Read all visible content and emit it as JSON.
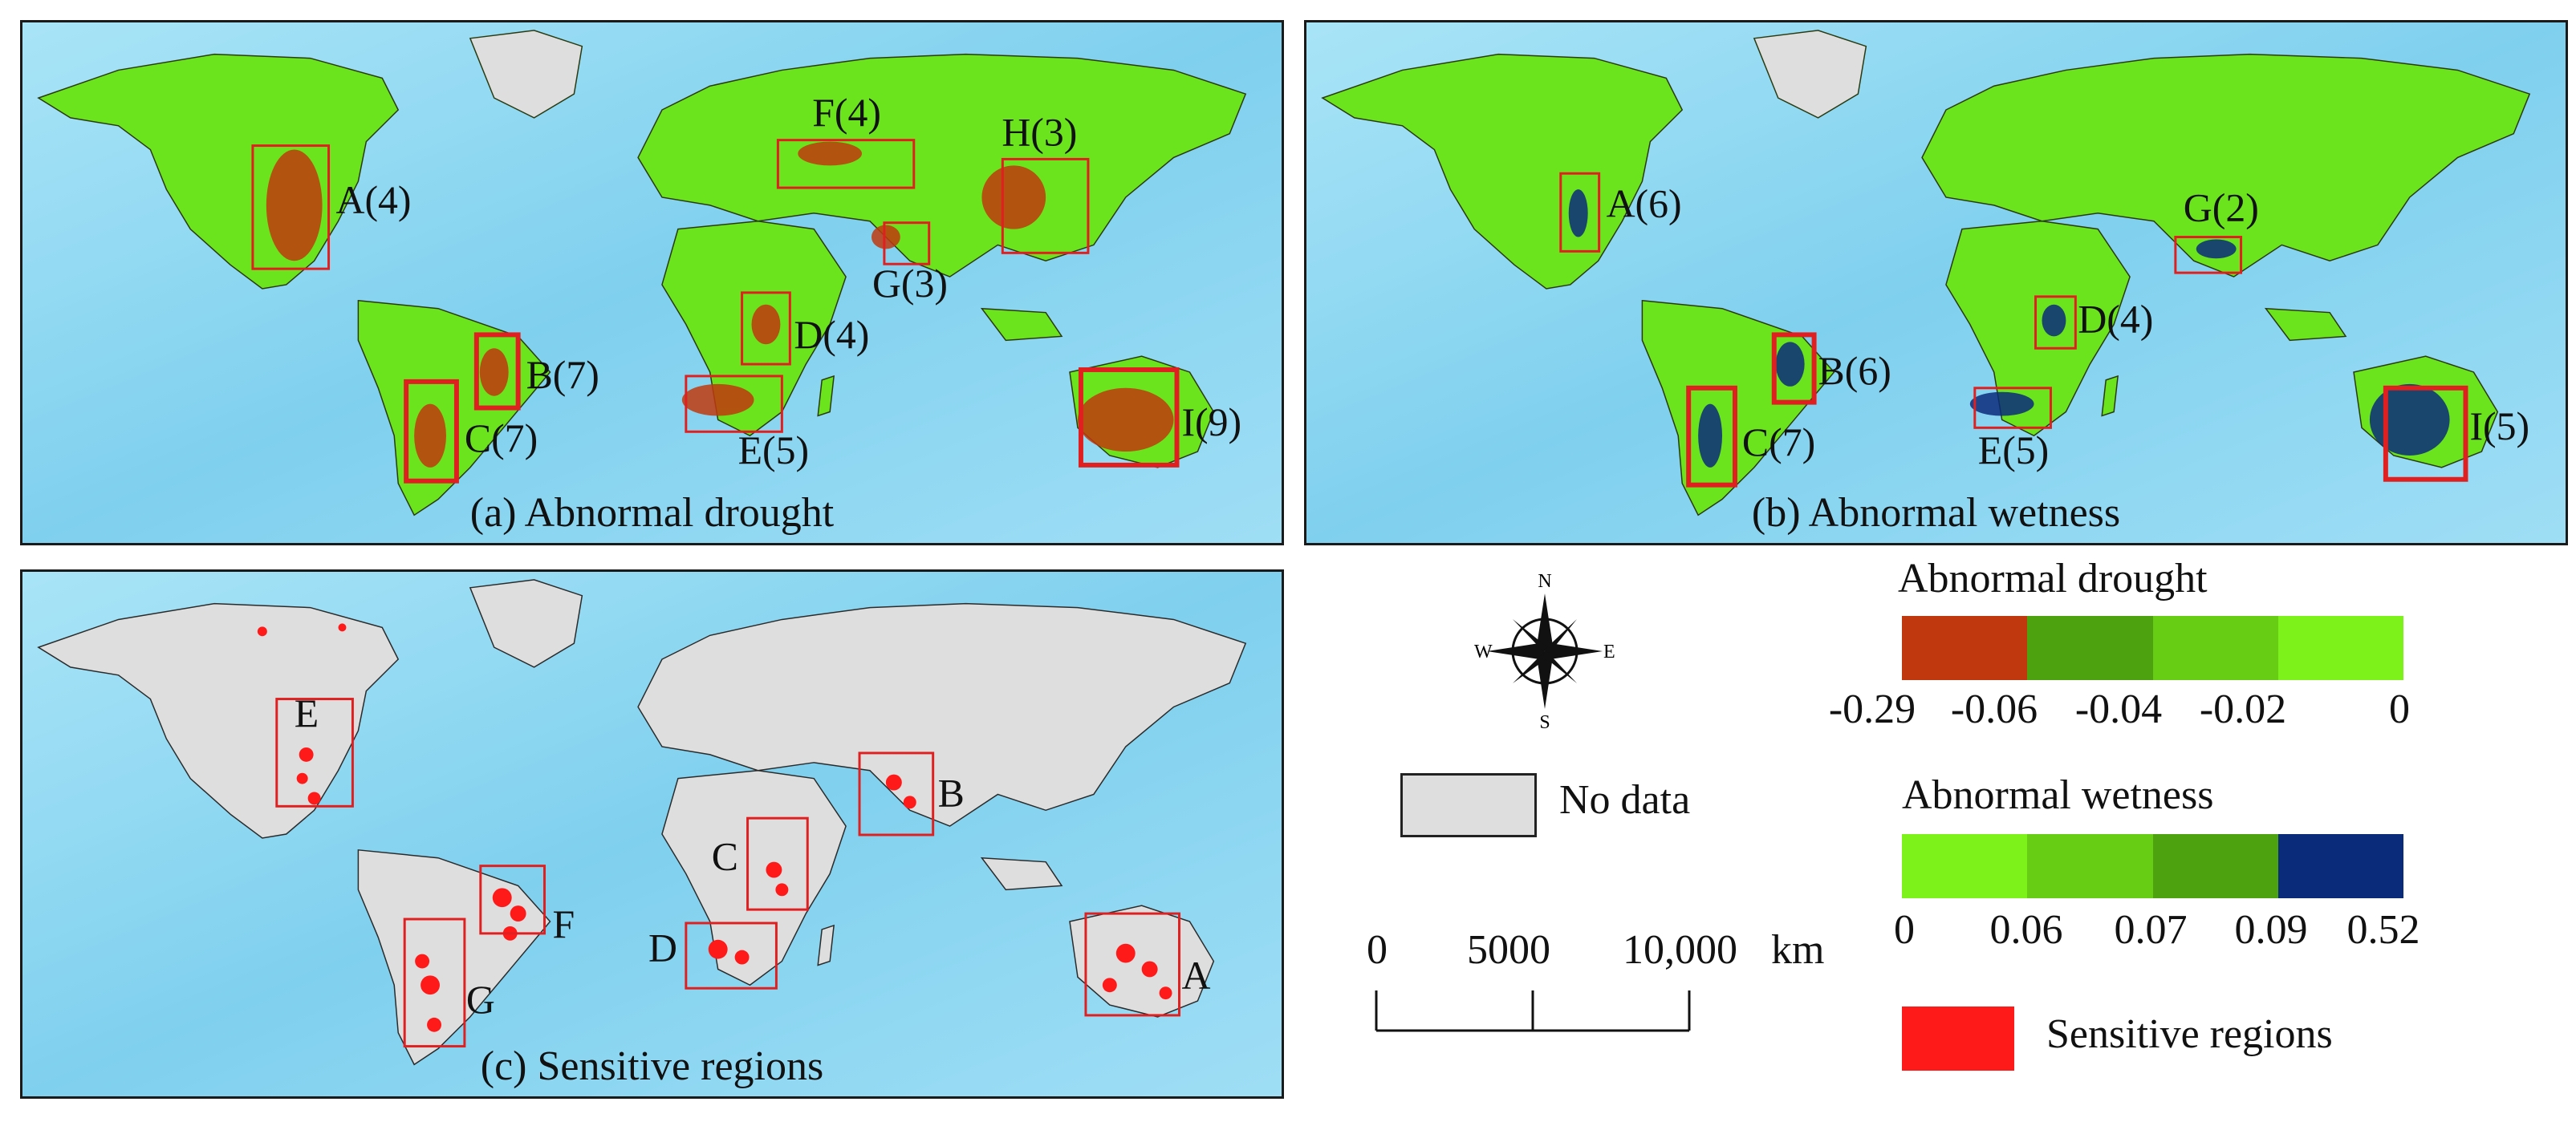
{
  "panels": {
    "a": {
      "caption": "(a) Abnormal drought",
      "regions": [
        "A(4)",
        "B(7)",
        "C(7)",
        "D(4)",
        "E(5)",
        "F(4)",
        "G(3)",
        "H(3)",
        "I(9)"
      ]
    },
    "b": {
      "caption": "(b) Abnormal wetness",
      "regions": [
        "A(6)",
        "B(6)",
        "C(7)",
        "D(4)",
        "E(5)",
        "G(2)",
        "I(5)"
      ]
    },
    "c": {
      "caption": "(c) Sensitive regions",
      "regions": [
        "A",
        "B",
        "C",
        "D",
        "E",
        "F",
        "G"
      ]
    }
  },
  "compass": {
    "n": "N",
    "s": "S",
    "e": "E",
    "w": "W"
  },
  "no_data_label": "No data",
  "scale_bar": {
    "ticks": [
      "0",
      "5000",
      "10,000"
    ],
    "unit": "km"
  },
  "drought_legend": {
    "title": "Abnormal drought",
    "colors": [
      "#c0390e",
      "#4da30f",
      "#66cc14",
      "#7cf21a"
    ],
    "ticks": [
      "-0.29",
      "-0.06",
      "-0.04",
      "-0.02",
      "0"
    ]
  },
  "wetness_legend": {
    "title": "Abnormal wetness",
    "colors": [
      "#7cf21a",
      "#66cc14",
      "#4da30f",
      "#0a2a7a"
    ],
    "ticks": [
      "0",
      "0.06",
      "0.07",
      "0.09",
      "0.52"
    ]
  },
  "sensitive_label": "Sensitive regions",
  "colors": {
    "ocean": "#8ed8f0",
    "land_green": "#6be31d",
    "drought_red": "#c0390e",
    "wet_blue": "#0a2a7a",
    "nodata_gray": "#dedede",
    "sensitive_red": "#ff1a1a",
    "box_red": "#e02020"
  }
}
